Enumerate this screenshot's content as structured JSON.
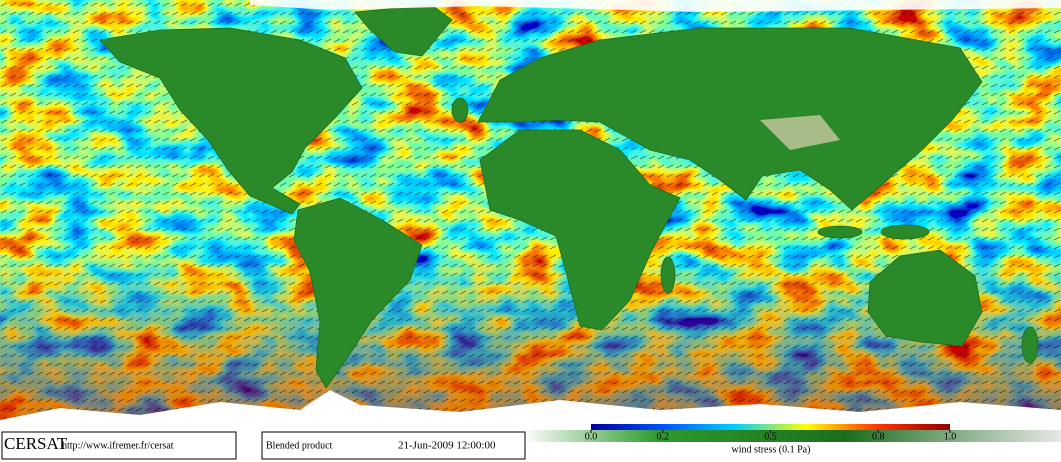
{
  "logo": "CERSAT",
  "url": "http://www.ifremer.fr/cersat",
  "product": "Blended product",
  "datetime": "21-Jun-2009 12:00:00",
  "colorbar": {
    "label": "wind stress (0.1 Pa)",
    "lim": [
      0,
      1
    ],
    "ticks": [
      {
        "value": 0,
        "label": "0.0"
      },
      0.2,
      0.5,
      0.8,
      {
        "value": 1,
        "label": "1.0"
      }
    ],
    "colors": [
      "#0000a0",
      "#0050ff",
      "#00d0ff",
      "#ffff00",
      "#ff3000",
      "#900000"
    ]
  }
}
